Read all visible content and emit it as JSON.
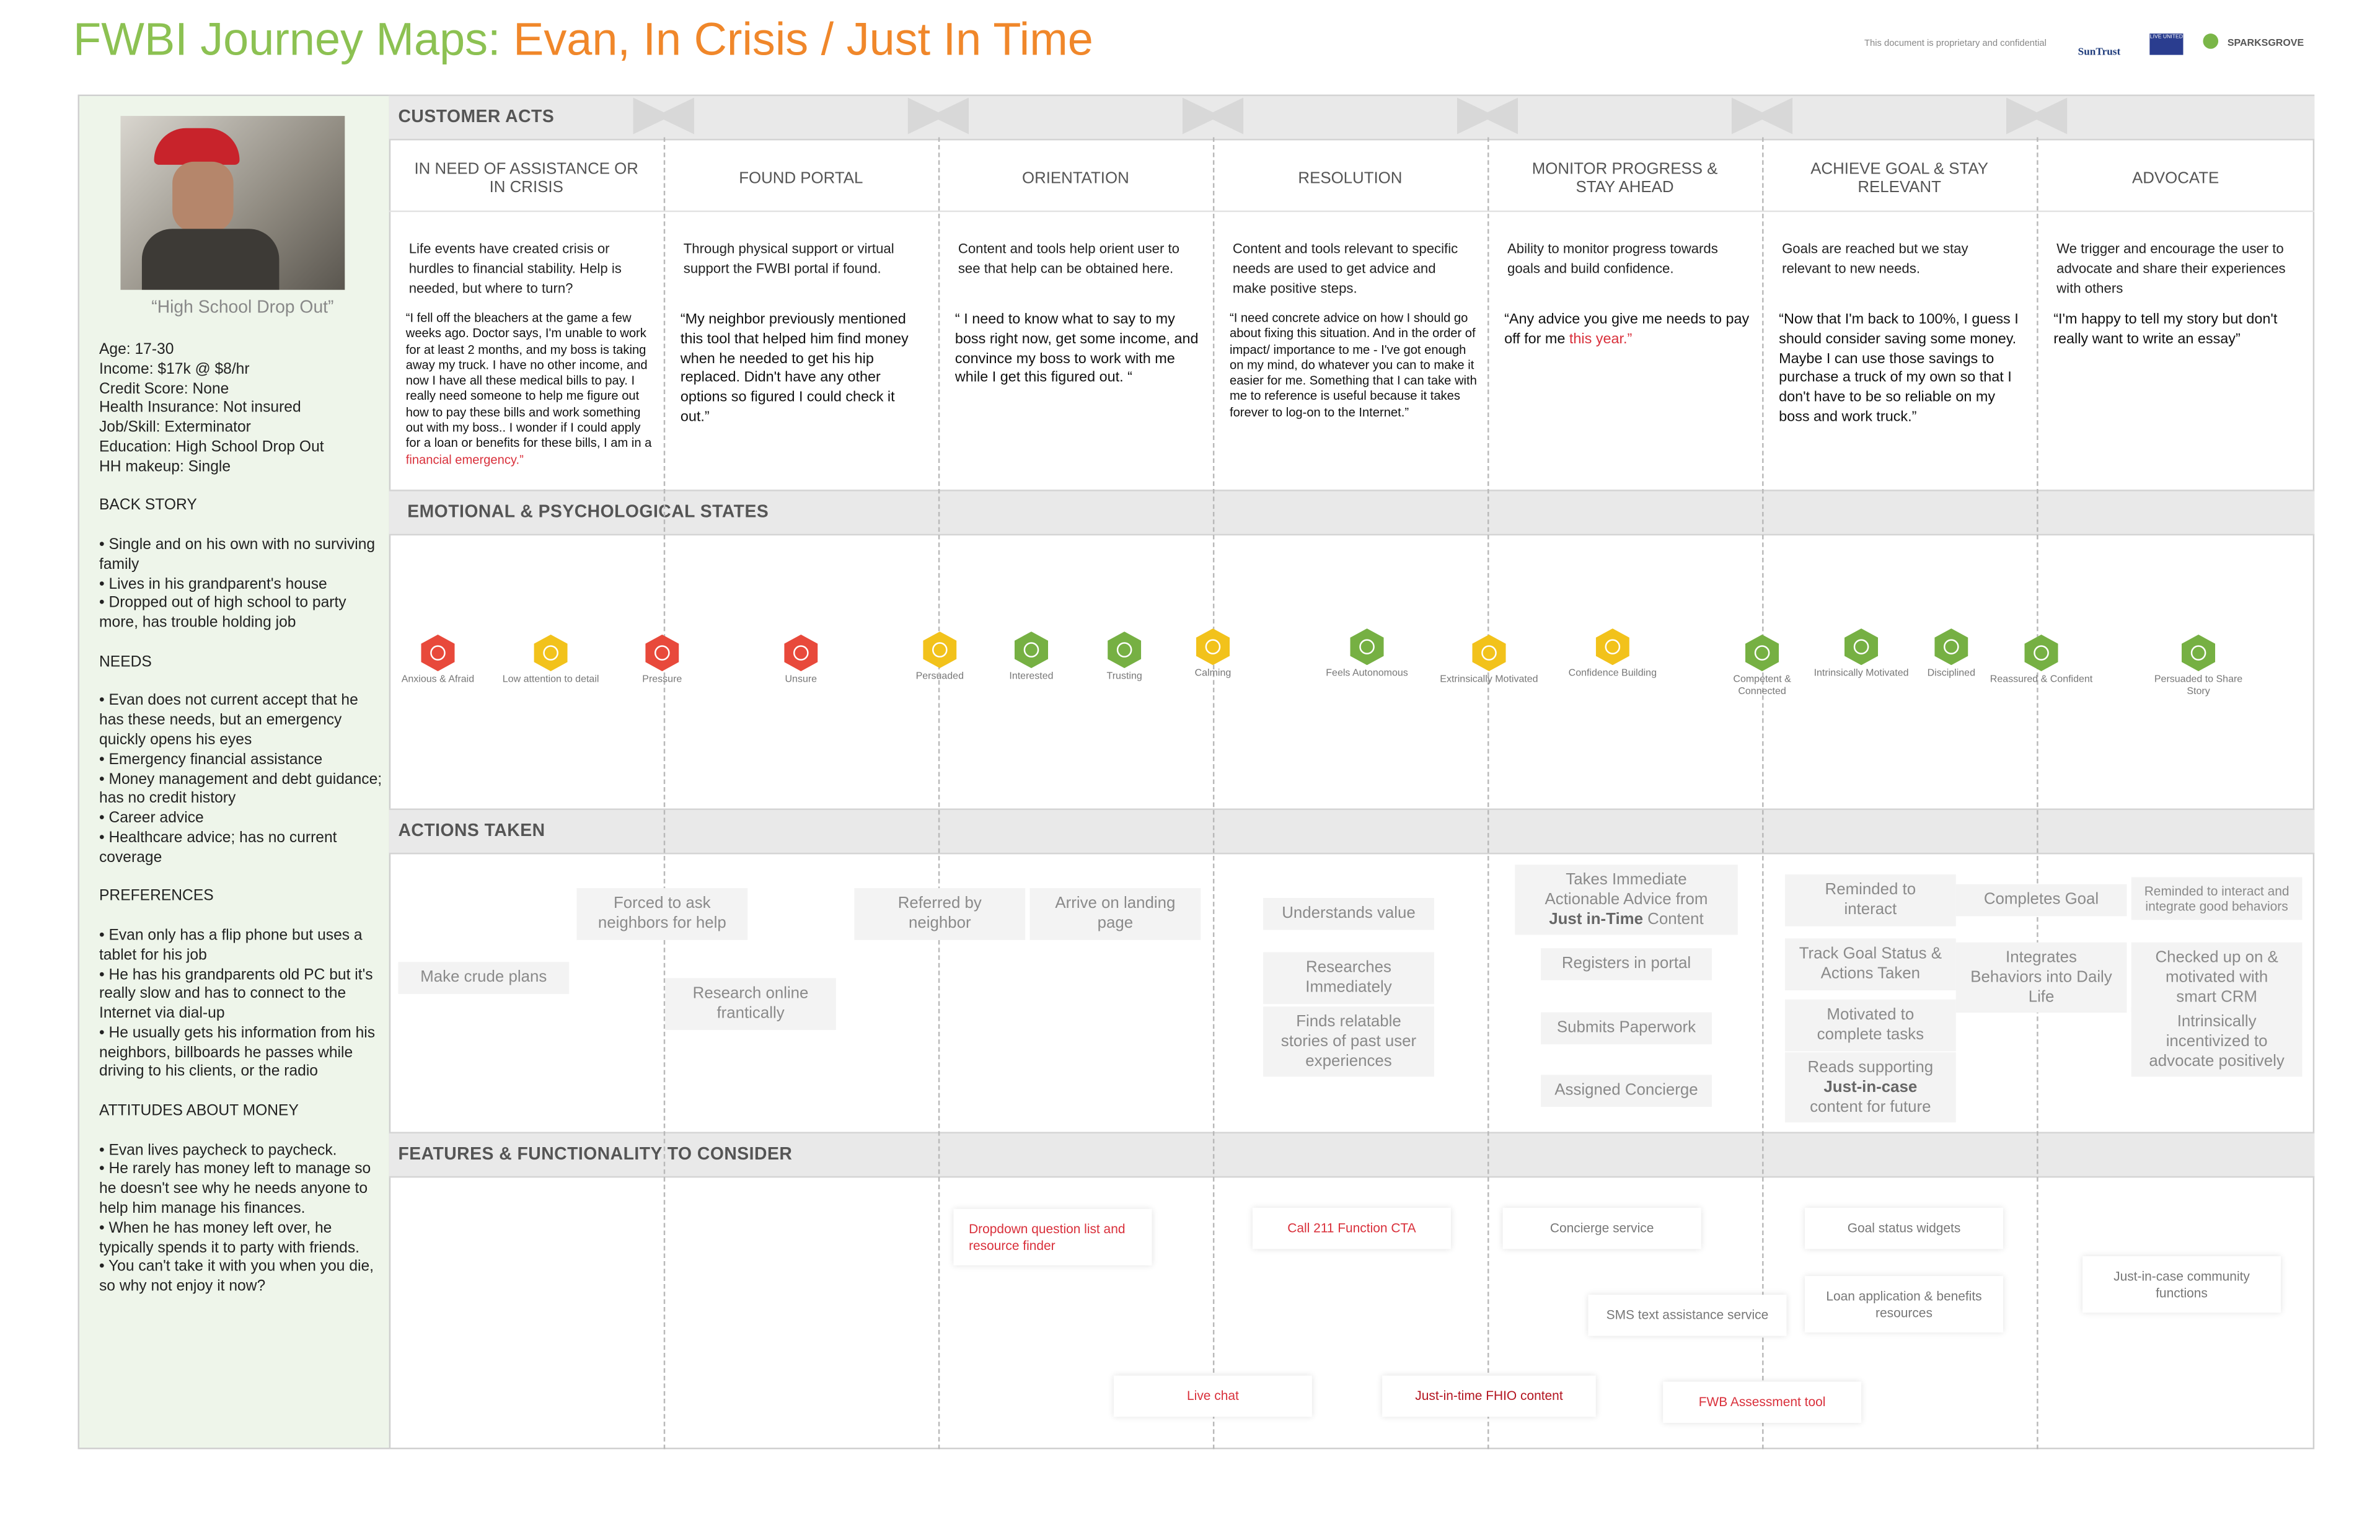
{
  "header": {
    "title_prefix": "FWBI Journey Maps:",
    "title_main": "Evan, In Crisis / Just In Time",
    "confidential": "This document is proprietary and confidential",
    "logos": [
      "SunTrust",
      "LIVE UNITED",
      "SPARKSGROVE"
    ]
  },
  "persona": {
    "quote": "“High School Drop Out”",
    "facts": [
      "Age: 17-30",
      "Income: $17k @ $8/hr",
      "Credit Score: None",
      "Health Insurance: Not insured",
      "Job/Skill: Exterminator",
      "Education: High School Drop Out",
      "HH makeup: Single"
    ],
    "sections": [
      {
        "heading": "BACK STORY",
        "items": [
          "• Single and on his own with no surviving family",
          "• Lives in his grandparent's house",
          "• Dropped out of high school to party more, has trouble holding job"
        ]
      },
      {
        "heading": "NEEDS",
        "items": [
          "• Evan does not current accept that he has these needs, but an emergency quickly opens his eyes",
          "• Emergency financial assistance",
          "• Money management and debt guidance; has no credit history",
          "• Career advice",
          "• Healthcare advice; has no current coverage"
        ]
      },
      {
        "heading": "PREFERENCES",
        "items": [
          "• Evan only has a flip phone but uses a tablet for his job",
          "• He has his grandparents old PC but it's really slow and has to connect to the Internet via dial-up",
          "• He usually gets his information from his neighbors, billboards he passes while driving to his clients, or the radio"
        ]
      },
      {
        "heading": "ATTITUDES ABOUT MONEY",
        "items": [
          "• Evan lives paycheck to paycheck.",
          "• He rarely has money left to manage so he doesn't see why he needs anyone to help him manage his finances.",
          "• When he has money left over, he typically spends it to party with friends.",
          "• You can't take it with you when you die, so why not enjoy it now?"
        ]
      }
    ]
  },
  "sections": {
    "customer_acts": "CUSTOMER ACTS",
    "emotional": "EMOTIONAL & PSYCHOLOGICAL STATES",
    "actions": "ACTIONS TAKEN",
    "features": "FEATURES & FUNCTIONALITY TO CONSIDER"
  },
  "phases": [
    {
      "title": "IN NEED OF ASSISTANCE OR IN CRISIS",
      "description": "Life events have created crisis or hurdles to financial stability. Help is needed, but where to turn?",
      "quote": "“I fell off the bleachers at the game a few weeks ago. Doctor says, I'm unable to work for at least 2 months, and my boss is taking away my truck. I have no other income, and now I have all these medical bills to pay. I really need someone to help me figure out how  to pay these bills and work something out with my boss.. I wonder if I could apply for a loan or benefits for these bills, I am in a ",
      "quote_highlight": "financial emergency.”"
    },
    {
      "title": "FOUND PORTAL",
      "description": "Through physical support or virtual support the FWBI portal if found.",
      "quote": "“My neighbor previously mentioned this tool that helped him find money when he needed to get his hip replaced. Didn't have any other options so figured I could check it out.”"
    },
    {
      "title": "ORIENTATION",
      "description": "Content and tools help orient user to see that help can be obtained here.",
      "quote": "“ I need to know what to say to my boss right now, get some income, and convince my boss to work with me while I get this figured out. “"
    },
    {
      "title": "RESOLUTION",
      "description": "Content and tools relevant to specific needs are used to get advice and make positive steps.",
      "quote": "“I need concrete advice on how I should go about fixing this situation. And in the order of impact/ importance to me - I've got enough on my mind, do whatever you can to make it easier for me. Something that I can take with me to reference is useful because it takes forever to log-on to the Internet.”"
    },
    {
      "title": "MONITOR PROGRESS & STAY AHEAD",
      "description": "Ability to monitor progress towards goals and build confidence.",
      "quote": "“Any advice you give me needs to pay off for me ",
      "quote_highlight": "this year.”"
    },
    {
      "title": "ACHIEVE GOAL & STAY RELEVANT",
      "description": "Goals are reached but we stay relevant to new needs.",
      "quote": "“Now that I'm back to 100%, I guess I should consider saving some money. Maybe I can use those savings to purchase a truck of my own so that I don't have to be so reliable on my boss and work truck.”"
    },
    {
      "title": "ADVOCATE",
      "description": "We trigger and encourage the user to advocate and share their experiences with others",
      "quote": "“I'm happy to tell my story but don't really want to  write an essay”"
    }
  ],
  "emotions": [
    {
      "label": "Anxious & Afraid",
      "color": "#e8493b"
    },
    {
      "label": "Low attention to detail",
      "color": "#f2c21b"
    },
    {
      "label": "Pressure",
      "color": "#e8493b"
    },
    {
      "label": "Unsure",
      "color": "#e8493b"
    },
    {
      "label": "Persuaded",
      "color": "#f2c21b"
    },
    {
      "label": "Interested",
      "color": "#76b043"
    },
    {
      "label": "Trusting",
      "color": "#76b043"
    },
    {
      "label": "Calming",
      "color": "#f2c21b"
    },
    {
      "label": "Feels Autonomous",
      "color": "#76b043"
    },
    {
      "label": "Extrinsically Motivated",
      "color": "#f2c21b"
    },
    {
      "label": "Confidence Building",
      "color": "#f2c21b"
    },
    {
      "label": "Competent & Connected",
      "color": "#76b043"
    },
    {
      "label": "Intrinsically Motivated",
      "color": "#76b043"
    },
    {
      "label": "Disciplined",
      "color": "#76b043"
    },
    {
      "label": "Reassured & Confident",
      "color": "#76b043"
    },
    {
      "label": "Persuaded to Share Story",
      "color": "#76b043"
    }
  ],
  "actions": [
    {
      "parts": [
        {
          "text": "Make crude plans"
        }
      ]
    },
    {
      "parts": [
        {
          "text": "Forced to ask neighbors for help"
        }
      ]
    },
    {
      "parts": [
        {
          "text": "Research online frantically"
        }
      ]
    },
    {
      "parts": [
        {
          "text": "Referred by neighbor"
        }
      ]
    },
    {
      "parts": [
        {
          "text": "Arrive on landing page"
        }
      ]
    },
    {
      "parts": [
        {
          "text": "Understands value"
        }
      ]
    },
    {
      "parts": [
        {
          "text": "Researches Immediately"
        }
      ]
    },
    {
      "parts": [
        {
          "text": "Finds relatable stories of past user experiences"
        }
      ]
    },
    {
      "parts": [
        {
          "text": "Takes Immediate Actionable Advice from "
        },
        {
          "text": "Just in-Time",
          "bold": true
        },
        {
          "text": " Content"
        }
      ]
    },
    {
      "parts": [
        {
          "text": "Registers in portal"
        }
      ]
    },
    {
      "parts": [
        {
          "text": "Submits Paperwork"
        }
      ]
    },
    {
      "parts": [
        {
          "text": "Assigned Concierge"
        }
      ]
    },
    {
      "parts": [
        {
          "text": "Reminded to interact"
        }
      ]
    },
    {
      "parts": [
        {
          "text": "Track Goal Status & Actions Taken"
        }
      ]
    },
    {
      "parts": [
        {
          "text": "Motivated to complete tasks"
        }
      ]
    },
    {
      "parts": [
        {
          "text": "Reads supporting "
        },
        {
          "text": "Just-in-case",
          "bold": true
        },
        {
          "text": " content for future"
        }
      ]
    },
    {
      "parts": [
        {
          "text": "Completes Goal"
        }
      ]
    },
    {
      "parts": [
        {
          "text": "Integrates Behaviors into Daily Life"
        }
      ]
    },
    {
      "parts": [
        {
          "text": "Reminded to interact and integrate good behaviors"
        }
      ]
    },
    {
      "parts": [
        {
          "text": "Checked up on & motivated with smart CRM"
        }
      ]
    },
    {
      "parts": [
        {
          "text": "Intrinsically incentivized to advocate positively"
        }
      ]
    }
  ],
  "features": [
    {
      "label": "Dropdown question list and resource finder",
      "color": "#d9303b"
    },
    {
      "label": "Call 211 Function CTA",
      "color": "#d9303b"
    },
    {
      "label": "Concierge service",
      "color": "#777777"
    },
    {
      "label": "Goal status widgets",
      "color": "#777777"
    },
    {
      "label": "SMS text assistance service",
      "color": "#777777"
    },
    {
      "label": "Loan application & benefits resources",
      "color": "#777777"
    },
    {
      "label": "Just-in-case community functions",
      "color": "#777777"
    },
    {
      "label": "Live chat",
      "color": "#d9303b"
    },
    {
      "label": "Just-in-time FHIO content",
      "color": "#b3141f"
    },
    {
      "label": "FWB Assessment tool",
      "color": "#d9303b"
    }
  ]
}
